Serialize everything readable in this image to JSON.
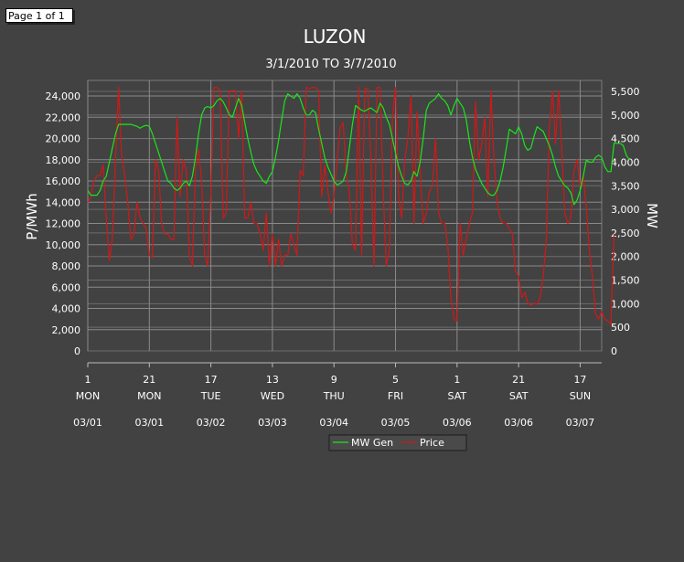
{
  "page_indicator": "Page 1 of 1",
  "chart_data": {
    "type": "line",
    "title": "LUZON",
    "subtitle": "3/1/2010 TO 3/7/2010",
    "ylabel": "P/MWh",
    "y2label": "MW",
    "ylim": [
      0,
      24000
    ],
    "y2lim": [
      0,
      5500
    ],
    "yticks": [
      "0",
      "2,000",
      "4,000",
      "6,000",
      "8,000",
      "10,000",
      "12,000",
      "14,000",
      "16,000",
      "18,000",
      "20,000",
      "22,000",
      "24,000"
    ],
    "y2ticks": [
      "0",
      "500",
      "1,000",
      "1,500",
      "2,000",
      "2,500",
      "3,000",
      "3,500",
      "4,000",
      "4,500",
      "5,000",
      "5,500"
    ],
    "xticks": [
      {
        "x": 0,
        "hour": "1",
        "day": "MON",
        "date": "03/01"
      },
      {
        "x": 20,
        "hour": "21",
        "day": "MON",
        "date": "03/01"
      },
      {
        "x": 40,
        "hour": "17",
        "day": "TUE",
        "date": "03/02"
      },
      {
        "x": 60,
        "hour": "13",
        "day": "WED",
        "date": "03/03"
      },
      {
        "x": 80,
        "hour": "9",
        "day": "THU",
        "date": "03/04"
      },
      {
        "x": 100,
        "hour": "5",
        "day": "FRI",
        "date": "03/05"
      },
      {
        "x": 120,
        "hour": "1",
        "day": "SAT",
        "date": "03/06"
      },
      {
        "x": 140,
        "hour": "21",
        "day": "SAT",
        "date": "03/06"
      },
      {
        "x": 160,
        "hour": "17",
        "day": "SUN",
        "date": "03/07"
      }
    ],
    "xlim": [
      0,
      167
    ],
    "legend": "bottom-center",
    "grid": true,
    "series": [
      {
        "name": "MW Gen",
        "axis": "right",
        "color": "#19e619",
        "values": [
          3400,
          3300,
          3300,
          3300,
          3400,
          3600,
          3700,
          4000,
          4300,
          4600,
          4800,
          4800,
          4800,
          4800,
          4800,
          4780,
          4760,
          4720,
          4760,
          4780,
          4760,
          4600,
          4400,
          4200,
          4000,
          3800,
          3600,
          3550,
          3450,
          3400,
          3450,
          3550,
          3600,
          3500,
          3700,
          4100,
          4600,
          5000,
          5150,
          5180,
          5150,
          5200,
          5300,
          5350,
          5280,
          5150,
          5000,
          4950,
          5150,
          5350,
          5200,
          4850,
          4500,
          4200,
          3950,
          3800,
          3700,
          3600,
          3550,
          3700,
          3800,
          4100,
          4450,
          4900,
          5300,
          5450,
          5400,
          5350,
          5450,
          5350,
          5150,
          5000,
          5000,
          5100,
          5050,
          4700,
          4400,
          4100,
          3900,
          3750,
          3600,
          3520,
          3550,
          3600,
          3800,
          4300,
          4800,
          5200,
          5150,
          5100,
          5080,
          5120,
          5150,
          5100,
          5050,
          5250,
          5150,
          4950,
          4800,
          4500,
          4200,
          3900,
          3700,
          3550,
          3520,
          3600,
          3800,
          3700,
          4000,
          4500,
          5100,
          5250,
          5300,
          5350,
          5450,
          5350,
          5300,
          5200,
          5000,
          5200,
          5350,
          5250,
          5150,
          4900,
          4450,
          4100,
          3850,
          3700,
          3550,
          3450,
          3350,
          3300,
          3300,
          3400,
          3600,
          3900,
          4300,
          4700,
          4650,
          4600,
          4750,
          4600,
          4350,
          4250,
          4300,
          4550,
          4750,
          4700,
          4650,
          4500,
          4350,
          4150,
          3900,
          3700,
          3600,
          3500,
          3450,
          3350,
          3100,
          3200,
          3400,
          3700,
          4050,
          4000,
          4000,
          4100,
          4150,
          4100,
          3900,
          3800,
          3800,
          4400,
          4400,
          4400,
          4350,
          4150,
          4050
        ]
      },
      {
        "name": "Price",
        "axis": "left",
        "color": "#d21818",
        "values": [
          14000,
          14500,
          16000,
          16500,
          16500,
          17500,
          12500,
          8500,
          10500,
          18000,
          24800,
          18500,
          16500,
          14000,
          10500,
          11000,
          14000,
          12500,
          12000,
          11500,
          9000,
          8800,
          18000,
          17000,
          12000,
          11000,
          11000,
          10500,
          10500,
          22000,
          14500,
          18000,
          17000,
          9000,
          8000,
          17000,
          19000,
          16000,
          9000,
          8000,
          15000,
          24800,
          24800,
          24500,
          12500,
          13000,
          24500,
          24500,
          24500,
          20000,
          24500,
          12500,
          12500,
          14000,
          12000,
          12000,
          11000,
          9500,
          13000,
          8000,
          11000,
          8000,
          10500,
          8000,
          9000,
          9000,
          11000,
          10000,
          9000,
          17000,
          16500,
          24800,
          24700,
          24800,
          24800,
          24500,
          14500,
          17500,
          15000,
          13000,
          14500,
          18000,
          21000,
          21500,
          16500,
          15000,
          10000,
          9500,
          24800,
          9000,
          24700,
          24700,
          18000,
          8000,
          24800,
          24800,
          15000,
          8000,
          9500,
          22000,
          24800,
          14500,
          12500,
          18000,
          20000,
          24000,
          12000,
          22500,
          17000,
          12000,
          13000,
          15000,
          15500,
          20000,
          13000,
          12000,
          12000,
          10000,
          5000,
          3000,
          2800,
          12000,
          9000,
          10500,
          12000,
          13000,
          23500,
          18000,
          19500,
          22000,
          14500,
          24500,
          18000,
          14000,
          12500,
          12000,
          12000,
          11500,
          11000,
          7500,
          7000,
          5000,
          5500,
          4500,
          4300,
          4500,
          4400,
          5000,
          7000,
          10500,
          21000,
          24500,
          19500,
          24500,
          19000,
          13000,
          12000,
          12500,
          17000,
          18000,
          15500,
          16500,
          13500,
          9500,
          7000,
          3500,
          3000,
          3700,
          3000,
          2800,
          2500,
          11000
        ]
      }
    ]
  }
}
